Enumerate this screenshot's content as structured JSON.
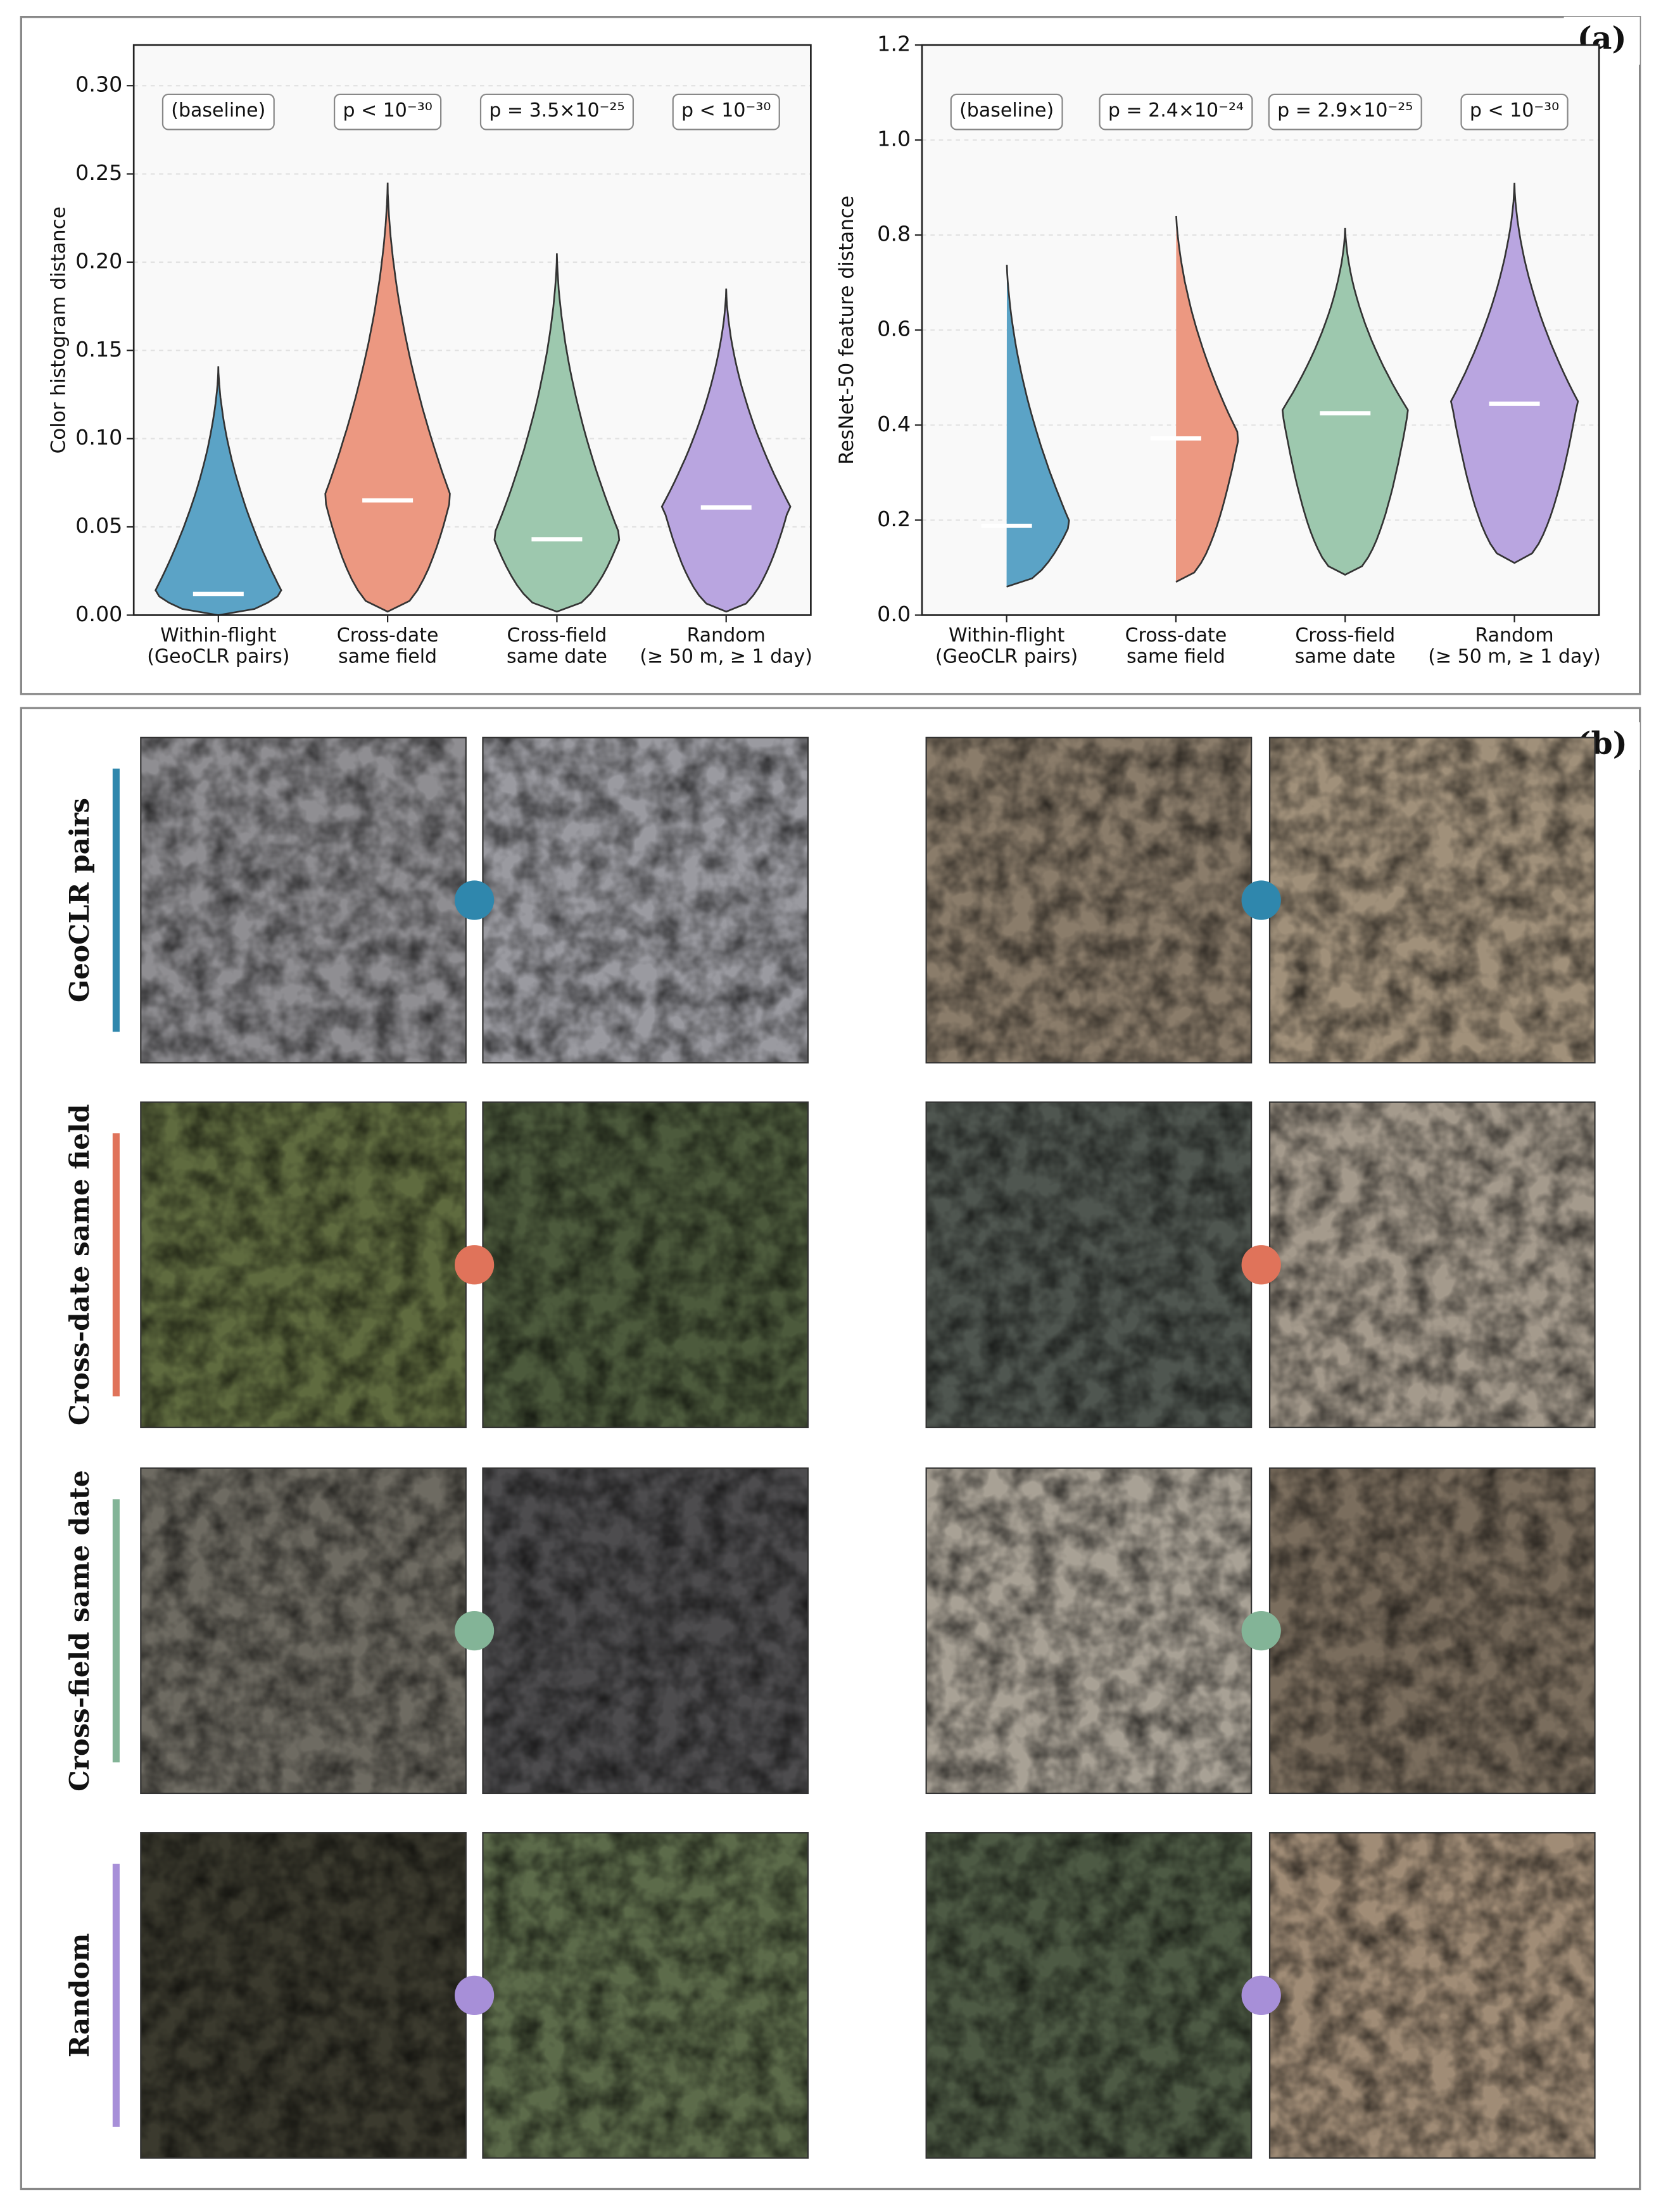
{
  "chart_data": [
    {
      "type": "violin",
      "panel_label": "(a)",
      "ylabel": "Color histogram distance",
      "categories": [
        [
          "Within-flight",
          "(GeoCLR pairs)"
        ],
        [
          "Cross-date",
          "same field"
        ],
        [
          "Cross-field",
          "same date"
        ],
        [
          "Random",
          "(≥ 50 m, ≥ 1 day)"
        ]
      ],
      "annotations": [
        "(baseline)",
        "p < 10⁻³⁰",
        "p = 3.5×10⁻²⁵",
        "p < 10⁻³⁰"
      ],
      "colors": [
        "#5ba3c6",
        "#ec9881",
        "#9dc8ae",
        "#b9a5e0"
      ],
      "mins": [
        0.0,
        0.002,
        0.002,
        0.002
      ],
      "medians": [
        0.012,
        0.065,
        0.043,
        0.061
      ],
      "maxs": [
        0.141,
        0.245,
        0.205,
        0.185
      ],
      "ylim": [
        0,
        0.323
      ],
      "yticks": [
        {
          "value": 0,
          "label": "0.00"
        },
        {
          "value": 0.05,
          "label": "0.05"
        },
        {
          "value": 0.1,
          "label": "0.10"
        },
        {
          "value": 0.15,
          "label": "0.15"
        },
        {
          "value": 0.2,
          "label": "0.20"
        },
        {
          "value": 0.25,
          "label": "0.25"
        },
        {
          "value": 0.3,
          "label": "0.30"
        }
      ],
      "grid": true
    },
    {
      "type": "violin",
      "ylabel": "ResNet-50 feature distance",
      "categories": [
        [
          "Within-flight",
          "(GeoCLR pairs)"
        ],
        [
          "Cross-date",
          "same field"
        ],
        [
          "Cross-field",
          "same date"
        ],
        [
          "Random",
          "(≥ 50 m, ≥ 1 day)"
        ]
      ],
      "annotations": [
        "(baseline)",
        "p = 2.4×10⁻²⁴",
        "p = 2.9×10⁻²⁵",
        "p < 10⁻³⁰"
      ],
      "colors": [
        "#5ba3c6",
        "#ec9881",
        "#9dc8ae",
        "#b9a5e0"
      ],
      "mins": [
        0.06,
        0.07,
        0.085,
        0.11
      ],
      "medians": [
        0.188,
        0.372,
        0.425,
        0.445
      ],
      "maxs": [
        0.755,
        0.86,
        0.815,
        0.91
      ],
      "ylim": [
        0,
        1.2
      ],
      "yticks": [
        {
          "value": 0,
          "label": "0.0"
        },
        {
          "value": 0.2,
          "label": "0.2"
        },
        {
          "value": 0.4,
          "label": "0.4"
        },
        {
          "value": 0.6,
          "label": "0.6"
        },
        {
          "value": 0.8,
          "label": "0.8"
        },
        {
          "value": 1.0,
          "label": "1.0"
        },
        {
          "value": 1.2,
          "label": "1.2"
        }
      ],
      "grid": true
    }
  ],
  "panel_b": {
    "label": "(b)",
    "rows": [
      {
        "label": "GeoCLR pairs",
        "color": "#2f87ad"
      },
      {
        "label": "Cross-date same field",
        "color": "#e0735a"
      },
      {
        "label": "Cross-field same date",
        "color": "#83b497"
      },
      {
        "label": "Random",
        "color": "#a78fd8"
      }
    ]
  }
}
